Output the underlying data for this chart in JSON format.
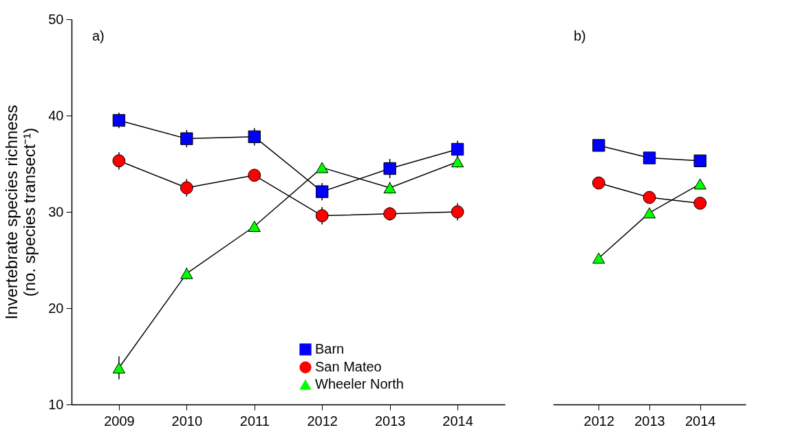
{
  "chart_data": [
    {
      "type": "line",
      "ylabel": "Invertebrate species richness\n(no. species transect⁻¹)",
      "categories": [
        "2009",
        "2010",
        "2011",
        "2012",
        "2013",
        "2014"
      ],
      "ylim": [
        10,
        50
      ],
      "yticks": [
        10,
        20,
        30,
        40,
        50
      ],
      "grid": false,
      "legend": "bottom",
      "annotations": [
        "a)"
      ],
      "series": [
        {
          "name": "Barn",
          "color": "#0000ff",
          "marker": "square",
          "values": [
            39.5,
            37.6,
            37.8,
            32.1,
            34.5,
            36.5
          ],
          "errors": [
            0.8,
            0.9,
            0.9,
            0.9,
            1.0,
            0.9
          ]
        },
        {
          "name": "San Mateo",
          "color": "#ff0000",
          "marker": "circle",
          "values": [
            35.3,
            32.5,
            33.8,
            29.6,
            29.8,
            30.0
          ],
          "errors": [
            0.9,
            0.9,
            0.5,
            0.9,
            0.7,
            0.9
          ]
        },
        {
          "name": "Wheeler North",
          "color": "#00ff00",
          "marker": "triangle",
          "values": [
            13.8,
            23.6,
            28.5,
            34.6,
            32.5,
            35.2
          ],
          "errors": [
            1.2,
            0.6,
            0.5,
            0.5,
            0.6,
            0.6
          ]
        }
      ]
    },
    {
      "type": "line",
      "categories": [
        "2012",
        "2013",
        "2014"
      ],
      "ylim": [
        10,
        50
      ],
      "tick_labels": "x",
      "grid": false,
      "annotations": [
        "b)"
      ],
      "series": [
        {
          "color": "#0000ff",
          "marker": "square",
          "values": [
            36.9,
            35.6,
            35.3
          ]
        },
        {
          "color": "#ff0000",
          "marker": "circle",
          "values": [
            33.0,
            31.5,
            30.9
          ]
        },
        {
          "color": "#00ff00",
          "marker": "triangle",
          "values": [
            25.2,
            29.9,
            32.9
          ]
        }
      ]
    }
  ]
}
